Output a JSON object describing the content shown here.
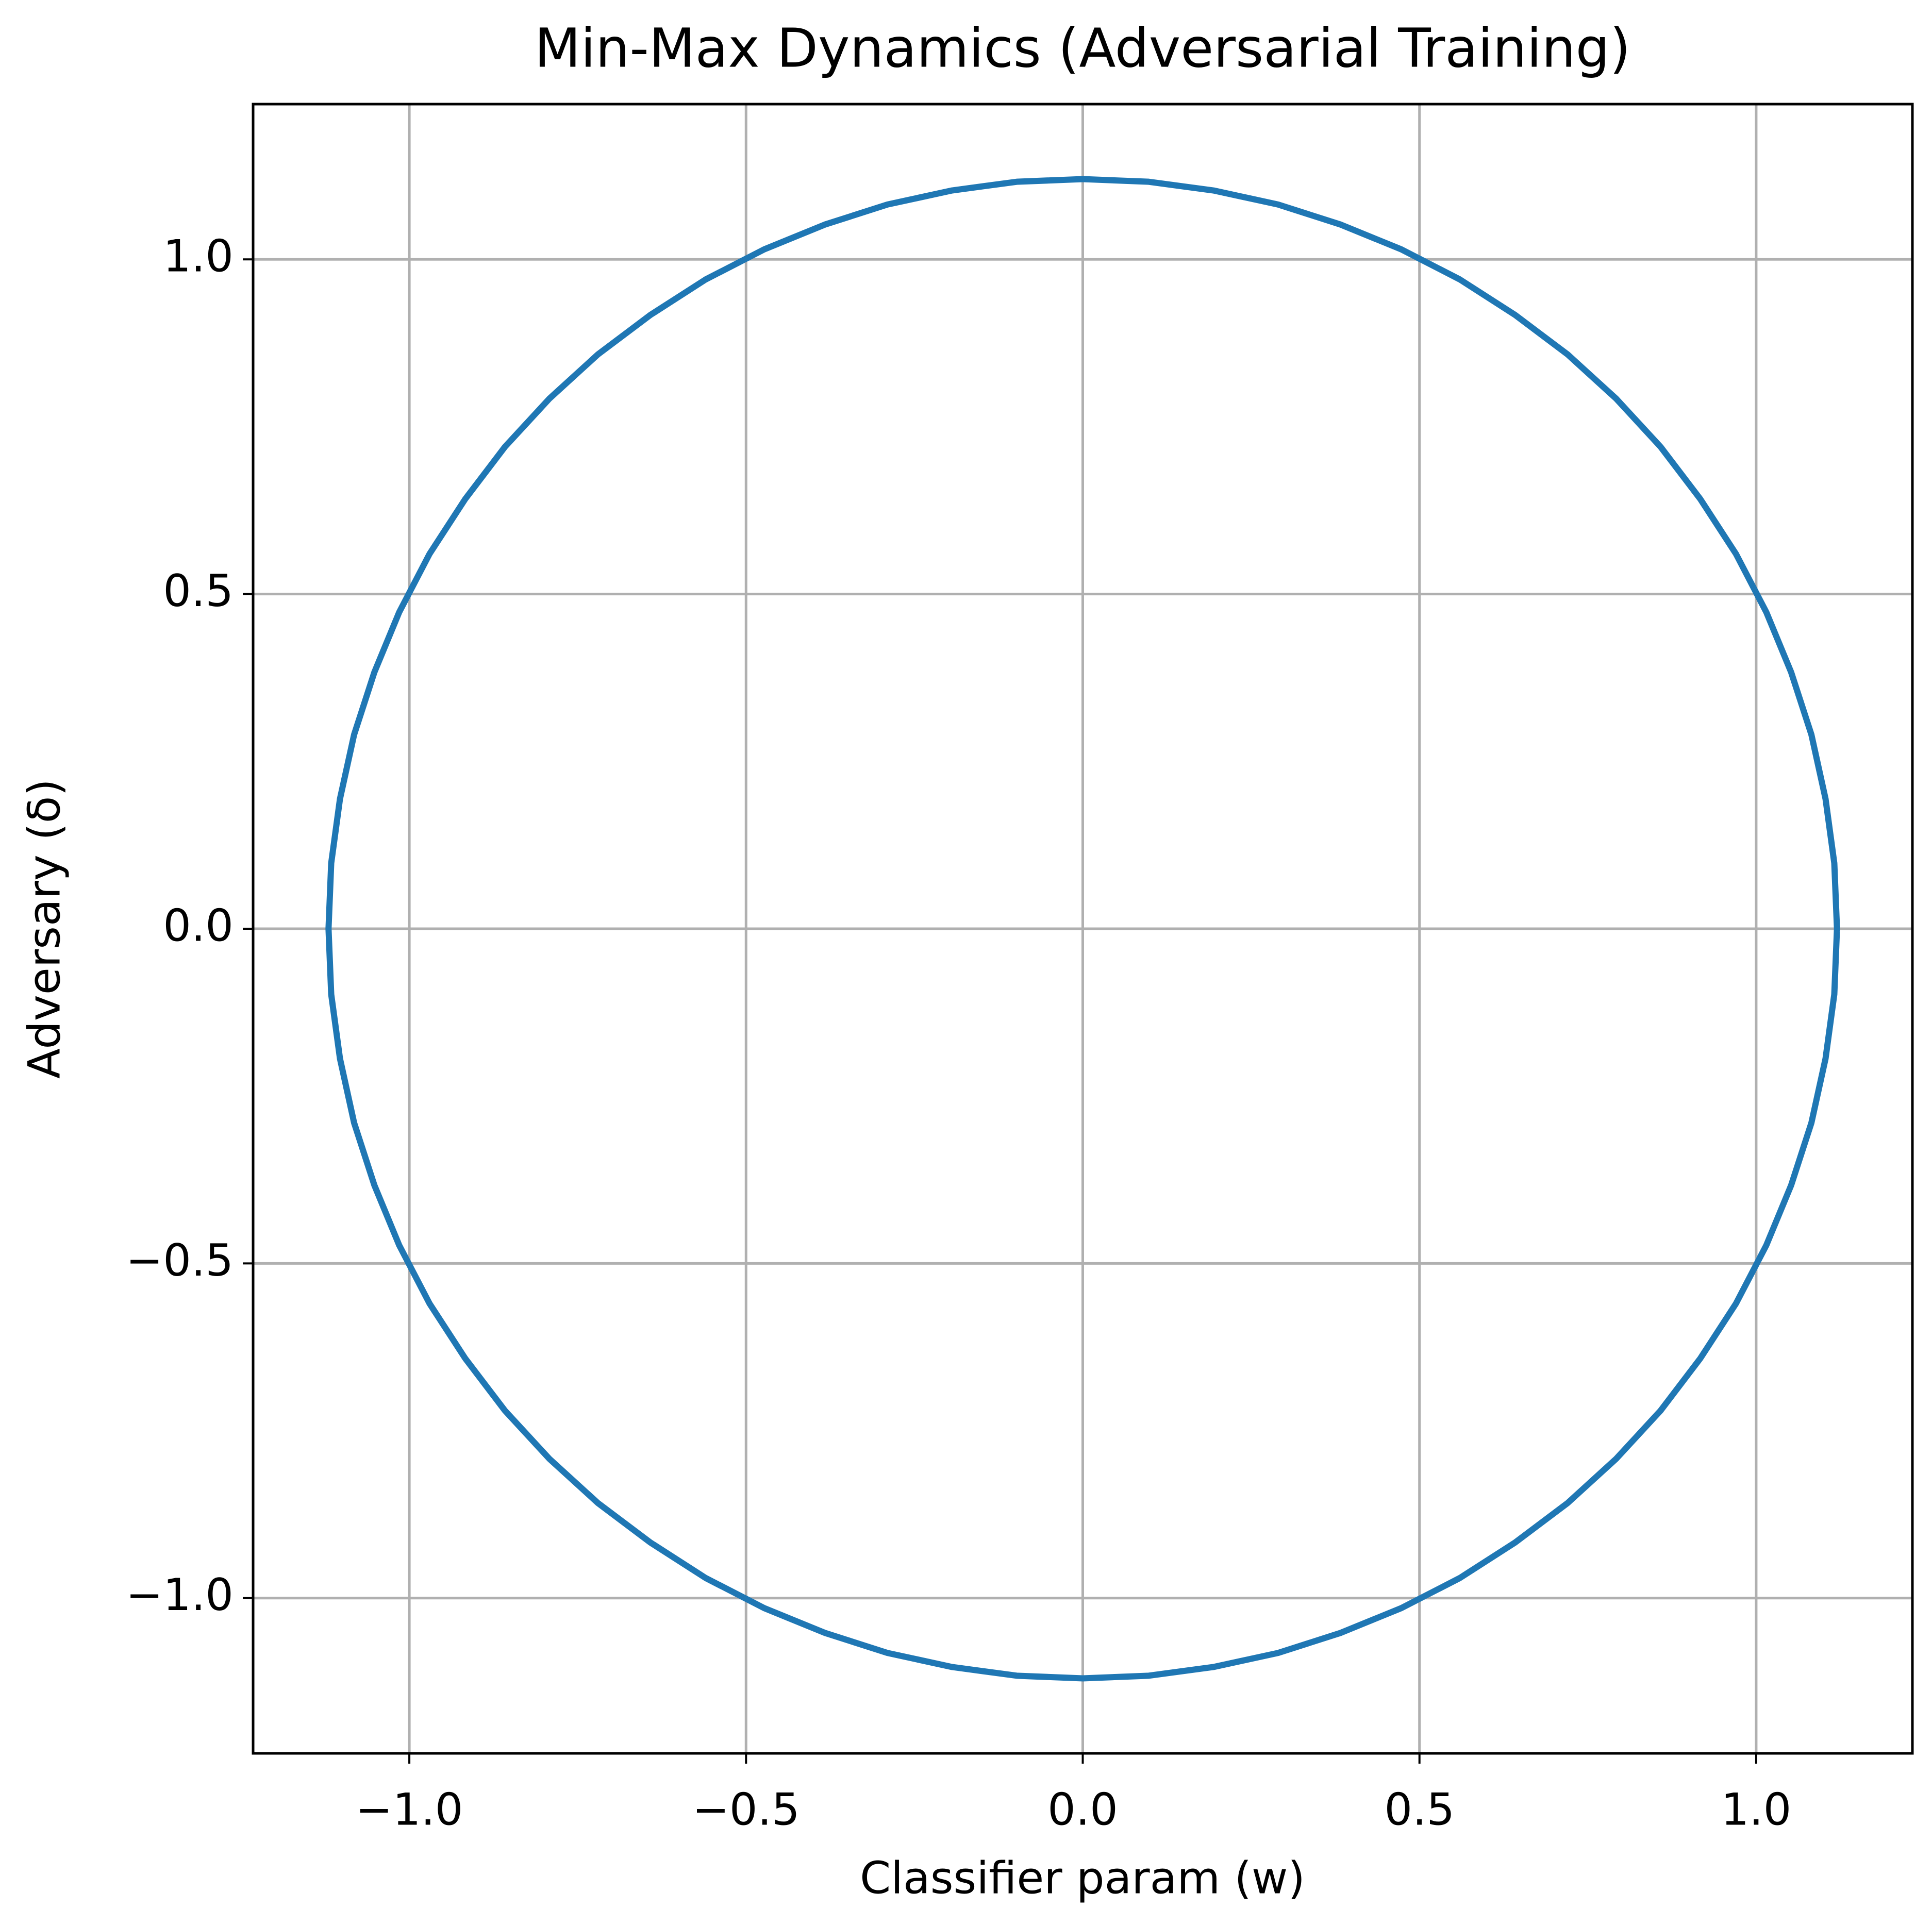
{
  "chart_data": {
    "type": "line",
    "title": "Min-Max Dynamics (Adversarial Training)",
    "x_label": "Classifier param (w)",
    "y_label": "Adversary (δ)",
    "color": "#1f77b4",
    "grid": true,
    "xlim": [
      -1.232,
      1.232
    ],
    "ylim": [
      -1.232,
      1.232
    ],
    "xticks": [
      {
        "value": -1.0,
        "label": "−1.0"
      },
      {
        "value": -0.5,
        "label": "−0.5"
      },
      {
        "value": 0.0,
        "label": "0.0"
      },
      0.5,
      {
        "value": 1.0,
        "label": "1.0"
      }
    ],
    "yticks": [
      {
        "value": -1.0,
        "label": "−1.0"
      },
      {
        "value": -0.5,
        "label": "−0.5"
      },
      {
        "value": 0.0,
        "label": "0.0"
      },
      0.5,
      {
        "value": 1.0,
        "label": "1.0"
      }
    ],
    "x": [
      1.12,
      1.116,
      1.103,
      1.082,
      1.052,
      1.015,
      0.97,
      0.917,
      0.858,
      0.792,
      0.72,
      0.642,
      0.56,
      0.473,
      0.383,
      0.29,
      0.194,
      0.098,
      0,
      -0.098,
      -0.194,
      -0.29,
      -0.383,
      -0.473,
      -0.56,
      -0.642,
      -0.72,
      -0.792,
      -0.858,
      -0.917,
      -0.97,
      -1.015,
      -1.052,
      -1.082,
      -1.103,
      -1.116,
      -1.12,
      -1.116,
      -1.103,
      -1.082,
      -1.052,
      -1.015,
      -0.97,
      -0.917,
      -0.858,
      -0.792,
      -0.72,
      -0.642,
      -0.56,
      -0.473,
      -0.383,
      -0.29,
      -0.194,
      -0.098,
      0,
      0.098,
      0.194,
      0.29,
      0.383,
      0.473,
      0.56,
      0.642,
      0.72,
      0.792,
      0.858,
      0.917,
      0.97,
      1.015,
      1.052,
      1.082,
      1.103,
      1.116,
      1.12
    ],
    "values": [
      0,
      0.098,
      0.194,
      0.29,
      0.383,
      0.473,
      0.56,
      0.642,
      0.72,
      0.792,
      0.858,
      0.917,
      0.97,
      1.015,
      1.052,
      1.082,
      1.103,
      1.116,
      1.12,
      1.116,
      1.103,
      1.082,
      1.052,
      1.015,
      0.97,
      0.917,
      0.858,
      0.792,
      0.72,
      0.642,
      0.56,
      0.473,
      0.383,
      0.29,
      0.194,
      0.098,
      0,
      -0.098,
      -0.194,
      -0.29,
      -0.383,
      -0.473,
      -0.56,
      -0.642,
      -0.72,
      -0.792,
      -0.858,
      -0.917,
      -0.97,
      -1.015,
      -1.052,
      -1.082,
      -1.103,
      -1.116,
      -1.12,
      -1.116,
      -1.103,
      -1.082,
      -1.052,
      -1.015,
      -0.97,
      -0.917,
      -0.858,
      -0.792,
      -0.72,
      -0.642,
      -0.56,
      -0.473,
      -0.383,
      -0.29,
      -0.194,
      -0.098,
      0
    ]
  }
}
